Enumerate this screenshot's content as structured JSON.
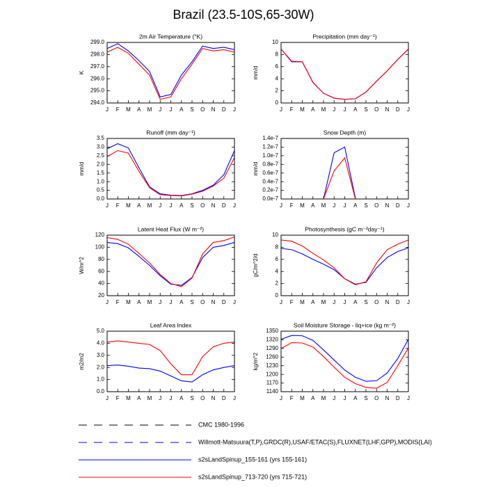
{
  "title": "Brazil (23.5-10S,65-30W)",
  "legend": [
    {
      "label": "CMC 1980-1996",
      "color": "#000000",
      "dash": true
    },
    {
      "label": "Willmott-Matsuura(T,P),GRDC(R),USAF/ETAC(S),FLUXNET(LHF,GPP),MODIS(LAI)",
      "color": "#0000ff",
      "dash": true
    },
    {
      "label": "s2sLandSpinup_155-161 (yrs 155-161)",
      "color": "#0000ff",
      "dash": false
    },
    {
      "label": "s2sLandSpinup_713-720 (yrs 715-721)",
      "color": "#ff0000",
      "dash": false
    }
  ],
  "chart_data": [
    {
      "type": "line",
      "title": "2m Air Temperature (°K)",
      "y_label": "K",
      "categories": [
        "J",
        "F",
        "M",
        "A",
        "M",
        "J",
        "J",
        "A",
        "S",
        "O",
        "N",
        "D",
        "J"
      ],
      "ylim": [
        294,
        299
      ],
      "yticks": [
        {
          "value": 294,
          "label": "294.0"
        },
        {
          "value": 295,
          "label": "295.0"
        },
        {
          "value": 296,
          "label": "296.0"
        },
        {
          "value": 297,
          "label": "297.0"
        },
        {
          "value": 298,
          "label": "298.0"
        },
        {
          "value": 299,
          "label": "299.0"
        }
      ],
      "series": [
        {
          "color": "#0000ff",
          "values": [
            298.5,
            298.9,
            298.3,
            297.5,
            296.6,
            294.5,
            294.7,
            296.3,
            297.4,
            298.7,
            298.5,
            298.6,
            298.4
          ]
        },
        {
          "color": "#ff0000",
          "values": [
            298.2,
            298.6,
            298.1,
            297.2,
            296.3,
            294.3,
            294.5,
            296.0,
            297.2,
            298.5,
            298.3,
            298.4,
            298.2
          ]
        }
      ]
    },
    {
      "type": "line",
      "title": "Precipitation (mm day⁻¹)",
      "y_label": "mm/d",
      "categories": [
        "J",
        "F",
        "M",
        "A",
        "M",
        "J",
        "J",
        "A",
        "S",
        "O",
        "N",
        "D",
        "J"
      ],
      "ylim": [
        0,
        10
      ],
      "yticks": [
        0,
        2,
        4,
        6,
        8,
        10
      ],
      "series": [
        {
          "color": "#0000ff",
          "values": [
            8.9,
            6.8,
            6.8,
            3.4,
            1.6,
            0.8,
            0.6,
            0.7,
            1.8,
            3.6,
            5.3,
            7.2,
            8.9
          ]
        },
        {
          "color": "#ff0000",
          "values": [
            8.9,
            6.9,
            6.8,
            3.4,
            1.6,
            0.8,
            0.6,
            0.7,
            1.8,
            3.6,
            5.3,
            7.2,
            8.9
          ]
        }
      ]
    },
    {
      "type": "line",
      "title": "Runoff (mm day⁻¹)",
      "y_label": "mm/d",
      "categories": [
        "J",
        "F",
        "M",
        "A",
        "M",
        "J",
        "J",
        "A",
        "S",
        "O",
        "N",
        "D",
        "J"
      ],
      "ylim": [
        0,
        3.5
      ],
      "yticks": [
        {
          "value": 0,
          "label": "0.0"
        },
        0.5,
        {
          "value": 1,
          "label": "1.0"
        },
        1.5,
        {
          "value": 2,
          "label": "2.0"
        },
        2.5,
        {
          "value": 3,
          "label": "3.0"
        },
        3.5
      ],
      "series": [
        {
          "color": "#0000ff",
          "values": [
            2.9,
            3.2,
            2.95,
            1.8,
            0.7,
            0.3,
            0.22,
            0.2,
            0.3,
            0.5,
            0.8,
            1.4,
            2.8
          ]
        },
        {
          "color": "#ff0000",
          "values": [
            2.45,
            2.8,
            2.65,
            1.6,
            0.65,
            0.25,
            0.2,
            0.18,
            0.28,
            0.45,
            0.75,
            1.2,
            2.4
          ]
        }
      ]
    },
    {
      "type": "line",
      "title": "Snow Depth (m)",
      "y_label": "mm/d",
      "categories": [
        "J",
        "F",
        "M",
        "A",
        "M",
        "J",
        "J",
        "A",
        "S",
        "O",
        "N",
        "D",
        "J"
      ],
      "ylim": [
        0,
        1.4e-07
      ],
      "yticks": [
        {
          "value": 0,
          "label": "0.0e-7"
        },
        {
          "value": 2e-08,
          "label": "0.2e-7"
        },
        {
          "value": 4e-08,
          "label": "0.4e-7"
        },
        {
          "value": 6e-08,
          "label": "0.6e-7"
        },
        {
          "value": 8e-08,
          "label": "0.8e-7"
        },
        {
          "value": 1e-07,
          "label": "1.0e-7"
        },
        {
          "value": 1.2e-07,
          "label": "1.2e-7"
        },
        {
          "value": 1.4e-07,
          "label": "1.4e-7"
        }
      ],
      "series": [
        {
          "color": "#0000ff",
          "values": [
            null,
            null,
            null,
            null,
            0,
            1.07e-07,
            1.2e-07,
            2e-09,
            null,
            null,
            null,
            null,
            null
          ]
        },
        {
          "color": "#ff0000",
          "values": [
            null,
            null,
            null,
            null,
            0,
            6.5e-08,
            9.5e-08,
            0,
            null,
            null,
            null,
            null,
            null
          ]
        }
      ]
    },
    {
      "type": "line",
      "title": "Latent Heat Flux (W m⁻²)",
      "y_label": "W/m^2",
      "categories": [
        "J",
        "F",
        "M",
        "A",
        "M",
        "J",
        "J",
        "A",
        "S",
        "O",
        "N",
        "D",
        "J"
      ],
      "ylim": [
        20,
        120
      ],
      "yticks": [
        20,
        40,
        60,
        80,
        100,
        120
      ],
      "series": [
        {
          "color": "#0000ff",
          "values": [
            108,
            106,
            99,
            85,
            70,
            53,
            39,
            37,
            50,
            83,
            100,
            103,
            108
          ]
        },
        {
          "color": "#ff0000",
          "values": [
            116,
            113,
            105,
            90,
            74,
            55,
            40,
            35,
            49,
            89,
            108,
            111,
            117
          ]
        }
      ]
    },
    {
      "type": "line",
      "title": "Photosynthesis (gC m⁻²day⁻¹)",
      "y_label": "gC/m^2/d",
      "categories": [
        "J",
        "F",
        "M",
        "A",
        "M",
        "J",
        "J",
        "A",
        "S",
        "O",
        "N",
        "D",
        "J"
      ],
      "ylim": [
        0,
        10
      ],
      "yticks": [
        0,
        2,
        4,
        6,
        8,
        10
      ],
      "series": [
        {
          "color": "#0000ff",
          "values": [
            7.8,
            7.6,
            6.9,
            6.0,
            5.2,
            4.3,
            2.8,
            1.9,
            2.2,
            4.6,
            6.3,
            7.3,
            7.9
          ]
        },
        {
          "color": "#ff0000",
          "values": [
            9.2,
            9.0,
            8.2,
            7.0,
            5.9,
            4.6,
            2.8,
            1.8,
            2.3,
            5.4,
            7.6,
            8.5,
            9.2
          ]
        }
      ]
    },
    {
      "type": "line",
      "title": "Leaf Area Index",
      "y_label": "m2/m2",
      "categories": [
        "J",
        "F",
        "M",
        "A",
        "M",
        "J",
        "J",
        "A",
        "S",
        "O",
        "N",
        "D",
        "J"
      ],
      "ylim": [
        0,
        5
      ],
      "yticks": [
        {
          "value": 0,
          "label": "0.0"
        },
        {
          "value": 1,
          "label": "1.0"
        },
        {
          "value": 2,
          "label": "2.0"
        },
        {
          "value": 3,
          "label": "3.0"
        },
        {
          "value": 4,
          "label": "4.0"
        },
        {
          "value": 5,
          "label": "5.0"
        }
      ],
      "series": [
        {
          "color": "#0000ff",
          "values": [
            2.15,
            2.2,
            2.1,
            1.95,
            1.9,
            1.7,
            1.3,
            0.9,
            0.8,
            1.4,
            1.8,
            2.0,
            2.15
          ]
        },
        {
          "color": "#ff0000",
          "values": [
            4.1,
            4.2,
            4.1,
            4.0,
            3.9,
            3.4,
            2.3,
            1.4,
            1.4,
            2.9,
            3.7,
            4.0,
            4.1
          ]
        }
      ]
    },
    {
      "type": "line",
      "title": "Soil Moisture Storage - liq+ice (kg m⁻²)",
      "y_label": "kg/m^2",
      "categories": [
        "J",
        "F",
        "M",
        "A",
        "M",
        "J",
        "J",
        "A",
        "S",
        "O",
        "N",
        "D",
        "J"
      ],
      "ylim": [
        1140,
        1350
      ],
      "yticks": [
        1140,
        1170,
        1200,
        1230,
        1260,
        1290,
        1320,
        1350
      ],
      "series": [
        {
          "color": "#0000ff",
          "values": [
            1322,
            1335,
            1334,
            1318,
            1285,
            1250,
            1215,
            1190,
            1176,
            1178,
            1205,
            1255,
            1322
          ]
        },
        {
          "color": "#ff0000",
          "values": [
            1290,
            1310,
            1309,
            1295,
            1262,
            1225,
            1190,
            1168,
            1155,
            1152,
            1172,
            1230,
            1292
          ]
        }
      ]
    }
  ]
}
